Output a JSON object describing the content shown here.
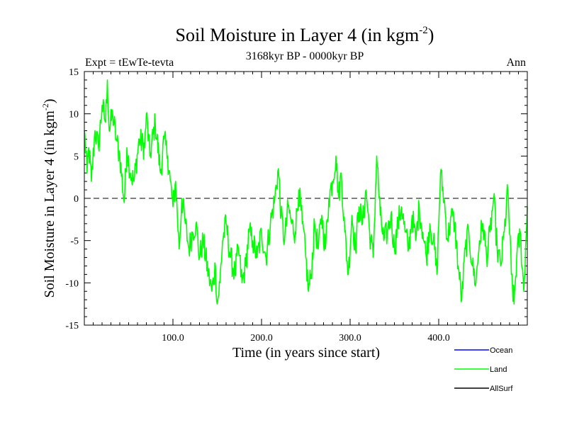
{
  "chart_data": {
    "type": "line",
    "title": "Soil Moisture in Layer 4 (in kgm",
    "title_sup": "-2",
    "title_close": ")",
    "subtitle": "3168kyr BP - 0000kyr BP",
    "experiment_label": "Expt = tEwTe-tevta",
    "period_label": "Ann",
    "xlabel": "Time (in years since start)",
    "ylabel": "Soil Moisture in Layer 4 (in kgm",
    "ylabel_sup": "-2",
    "ylabel_close": ")",
    "xlim": [
      0,
      500
    ],
    "ylim": [
      -15,
      15
    ],
    "x_ticks": [
      100,
      200,
      300,
      400
    ],
    "x_tick_labels": [
      "100.0",
      "200.0",
      "300.0",
      "400.0"
    ],
    "y_ticks": [
      -15,
      -10,
      -5,
      0,
      5,
      10,
      15
    ],
    "y_tick_labels": [
      "-15",
      "-10",
      "-5",
      "0",
      "5",
      "10",
      "15"
    ],
    "zero_line": 0,
    "legend": [
      {
        "name": "Ocean",
        "color": "#0000ff"
      },
      {
        "name": "Land",
        "color": "#00ff00"
      },
      {
        "name": "AllSurf",
        "color": "#000000"
      }
    ],
    "series": [
      {
        "name": "Land",
        "color": "#00ff00",
        "x": [
          0,
          3,
          5,
          8,
          12,
          16,
          20,
          24,
          26,
          28,
          32,
          36,
          40,
          45,
          48,
          52,
          56,
          62,
          68,
          70,
          74,
          80,
          86,
          90,
          94,
          97,
          100,
          103,
          107,
          110,
          114,
          118,
          122,
          126,
          130,
          134,
          140,
          144,
          148,
          150,
          153,
          156,
          160,
          165,
          170,
          174,
          178,
          182,
          186,
          190,
          195,
          200,
          205,
          210,
          215,
          219,
          222,
          226,
          230,
          234,
          238,
          242,
          246,
          250,
          253,
          256,
          260,
          264,
          268,
          272,
          276,
          280,
          284,
          287,
          290,
          294,
          298,
          302,
          306,
          310,
          314,
          318,
          322,
          326,
          330,
          334,
          338,
          342,
          346,
          350,
          354,
          358,
          362,
          366,
          370,
          374,
          378,
          382,
          386,
          390,
          394,
          398,
          402,
          406,
          410,
          414,
          418,
          422,
          426,
          430,
          434,
          438,
          442,
          446,
          450,
          454,
          458,
          462,
          466,
          470,
          474,
          478,
          482,
          485,
          488,
          492,
          496,
          500
        ],
        "y": [
          8,
          3,
          6,
          2,
          8,
          6,
          11,
          9,
          14,
          8,
          10,
          7,
          5,
          -0.5,
          6,
          3,
          2,
          7,
          6,
          10,
          5,
          9,
          3,
          7,
          5,
          2,
          -1,
          2,
          -6,
          0,
          -3,
          -6,
          -4,
          -3,
          -7,
          -5,
          -9,
          -11,
          -8,
          -12.5,
          -10,
          -5,
          -3,
          -7,
          -9,
          -6,
          -10,
          -8,
          -4,
          -5,
          -7,
          -4,
          -7,
          -3,
          0,
          3.5,
          -2,
          -5,
          -1,
          -3,
          -4,
          1,
          -3,
          -7,
          -11,
          -9,
          -3,
          -6,
          -2,
          -6,
          0,
          2,
          5,
          0,
          3,
          -4,
          -9,
          -2,
          -6,
          -1,
          -3,
          1,
          -4,
          -7,
          5,
          -2,
          -5,
          -4,
          -2,
          -6,
          -3,
          -1,
          -4,
          -6,
          -2,
          -5,
          -1,
          -4,
          -7,
          -3,
          -5,
          -9,
          3,
          0,
          -5,
          -2,
          -3,
          -8,
          -12,
          -6,
          -4,
          -8,
          -10,
          -5,
          -3,
          -7,
          -4,
          0,
          -6,
          -8,
          -4,
          1,
          -9,
          -12.5,
          -7,
          -4,
          -11,
          -1
        ]
      }
    ]
  }
}
